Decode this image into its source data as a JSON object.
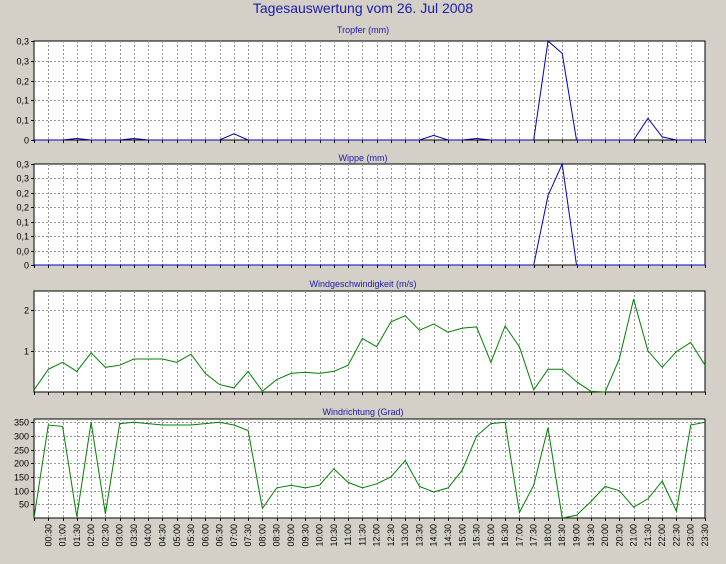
{
  "page": {
    "title": "Tagesauswertung vom 26. Jul 2008"
  },
  "chart_data": [
    {
      "type": "line",
      "title": "Tropfer (mm)",
      "color": "#0000c0",
      "ylim": [
        0,
        0.32
      ],
      "yticks": [
        0,
        0.064,
        0.128,
        0.192,
        0.256,
        0.32
      ],
      "ytick_labels": [
        "0",
        "0,1",
        "0,1",
        "0,2",
        "0,3",
        "0,3"
      ],
      "x": [
        0,
        0.5,
        1,
        1.5,
        2,
        2.5,
        3,
        3.5,
        4,
        4.5,
        5,
        5.5,
        6,
        6.5,
        7,
        7.5,
        8,
        8.5,
        9,
        9.5,
        10,
        10.5,
        11,
        11.5,
        12,
        12.5,
        13,
        13.5,
        14,
        14.5,
        15,
        15.5,
        16,
        16.5,
        17,
        17.5,
        18,
        18.5,
        19,
        19.5,
        20,
        20.5,
        21,
        21.5,
        22,
        22.5,
        23,
        23.5
      ],
      "values": [
        0,
        0,
        0,
        0.005,
        0,
        0,
        0,
        0.005,
        0,
        0,
        0,
        0,
        0,
        0,
        0.02,
        0,
        0,
        0,
        0,
        0,
        0,
        0,
        0,
        0,
        0,
        0,
        0,
        0,
        0.015,
        0,
        0,
        0.005,
        0,
        0,
        0,
        0,
        0.32,
        0.28,
        0,
        0,
        0,
        0,
        0,
        0.07,
        0.01,
        0,
        0,
        0
      ]
    },
    {
      "type": "line",
      "title": "Wippe (mm)",
      "color": "#0000c0",
      "ylim": [
        0,
        0.32
      ],
      "yticks": [
        0,
        0.0457,
        0.0914,
        0.1371,
        0.1829,
        0.2286,
        0.2743,
        0.32
      ],
      "ytick_labels": [
        "0",
        "0,0",
        "0,1",
        "0,1",
        "0,2",
        "0,2",
        "0,3",
        "0,3"
      ],
      "x": [
        0,
        0.5,
        1,
        1.5,
        2,
        2.5,
        3,
        3.5,
        4,
        4.5,
        5,
        5.5,
        6,
        6.5,
        7,
        7.5,
        8,
        8.5,
        9,
        9.5,
        10,
        10.5,
        11,
        11.5,
        12,
        12.5,
        13,
        13.5,
        14,
        14.5,
        15,
        15.5,
        16,
        16.5,
        17,
        17.5,
        18,
        18.5,
        19,
        19.5,
        20,
        20.5,
        21,
        21.5,
        22,
        22.5,
        23,
        23.5
      ],
      "values": [
        0,
        0,
        0,
        0,
        0,
        0,
        0,
        0,
        0,
        0,
        0,
        0,
        0,
        0,
        0,
        0,
        0,
        0,
        0,
        0,
        0,
        0,
        0,
        0,
        0,
        0,
        0,
        0,
        0,
        0,
        0,
        0,
        0,
        0,
        0,
        0,
        0.22,
        0.32,
        0,
        0,
        0,
        0,
        0,
        0,
        0,
        0,
        0,
        0
      ]
    },
    {
      "type": "line",
      "title": "Windgeschwindigkeit (m/s)",
      "color": "#008000",
      "ylim": [
        0,
        2.45
      ],
      "yticks": [
        1,
        2
      ],
      "ytick_labels": [
        "1",
        "2"
      ],
      "x": [
        0,
        0.5,
        1,
        1.5,
        2,
        2.5,
        3,
        3.5,
        4,
        4.5,
        5,
        5.5,
        6,
        6.5,
        7,
        7.5,
        8,
        8.5,
        9,
        9.5,
        10,
        10.5,
        11,
        11.5,
        12,
        12.5,
        13,
        13.5,
        14,
        14.5,
        15,
        15.5,
        16,
        16.5,
        17,
        17.5,
        18,
        18.5,
        19,
        19.5,
        20,
        20.5,
        21,
        21.5,
        22,
        22.5,
        23,
        23.5
      ],
      "values": [
        0.05,
        0.55,
        0.72,
        0.5,
        0.95,
        0.6,
        0.65,
        0.8,
        0.8,
        0.8,
        0.72,
        0.92,
        0.45,
        0.18,
        0.1,
        0.5,
        0.02,
        0.3,
        0.45,
        0.48,
        0.45,
        0.5,
        0.65,
        1.3,
        1.1,
        1.7,
        1.85,
        1.5,
        1.65,
        1.45,
        1.55,
        1.58,
        0.72,
        1.6,
        1.1,
        0.05,
        0.55,
        0.55,
        0.25,
        0.02,
        0,
        0.8,
        2.25,
        1,
        0.6,
        0.98,
        1.2,
        0.65
      ]
    },
    {
      "type": "line",
      "title": "Windrichtung (Grad)",
      "color": "#008000",
      "ylim": [
        0,
        362
      ],
      "yticks": [
        50,
        100,
        150,
        200,
        250,
        300,
        350
      ],
      "ytick_labels": [
        "50",
        "100",
        "150",
        "200",
        "250",
        "300",
        "350"
      ],
      "x": [
        0,
        0.5,
        1,
        1.5,
        2,
        2.5,
        3,
        3.5,
        4,
        4.5,
        5,
        5.5,
        6,
        6.5,
        7,
        7.5,
        8,
        8.5,
        9,
        9.5,
        10,
        10.5,
        11,
        11.5,
        12,
        12.5,
        13,
        13.5,
        14,
        14.5,
        15,
        15.5,
        16,
        16.5,
        17,
        17.5,
        18,
        18.5,
        19,
        19.5,
        20,
        20.5,
        21,
        21.5,
        22,
        22.5,
        23,
        23.5
      ],
      "values": [
        0,
        340,
        335,
        5,
        350,
        15,
        345,
        350,
        345,
        340,
        340,
        340,
        345,
        350,
        340,
        320,
        35,
        110,
        120,
        110,
        120,
        180,
        130,
        110,
        125,
        150,
        210,
        115,
        95,
        110,
        175,
        300,
        345,
        350,
        20,
        120,
        330,
        0,
        10,
        60,
        115,
        100,
        40,
        70,
        135,
        25,
        340,
        350
      ],
      "xtick_labels": [
        "00:30",
        "01:00",
        "01:30",
        "02:00",
        "02:30",
        "03:00",
        "03:30",
        "04:00",
        "04:30",
        "05:00",
        "05:30",
        "06:00",
        "06:30",
        "07:00",
        "07:30",
        "08:00",
        "08:30",
        "09:00",
        "09:30",
        "10:00",
        "10:30",
        "11:00",
        "11:30",
        "12:00",
        "12:30",
        "13:00",
        "13:30",
        "14:00",
        "14:30",
        "15:00",
        "15:30",
        "16:00",
        "16:30",
        "17:00",
        "17:30",
        "18:00",
        "18:30",
        "19:00",
        "19:30",
        "20:00",
        "20:30",
        "21:00",
        "21:30",
        "22:00",
        "22:30",
        "23:00",
        "23:30"
      ]
    }
  ]
}
